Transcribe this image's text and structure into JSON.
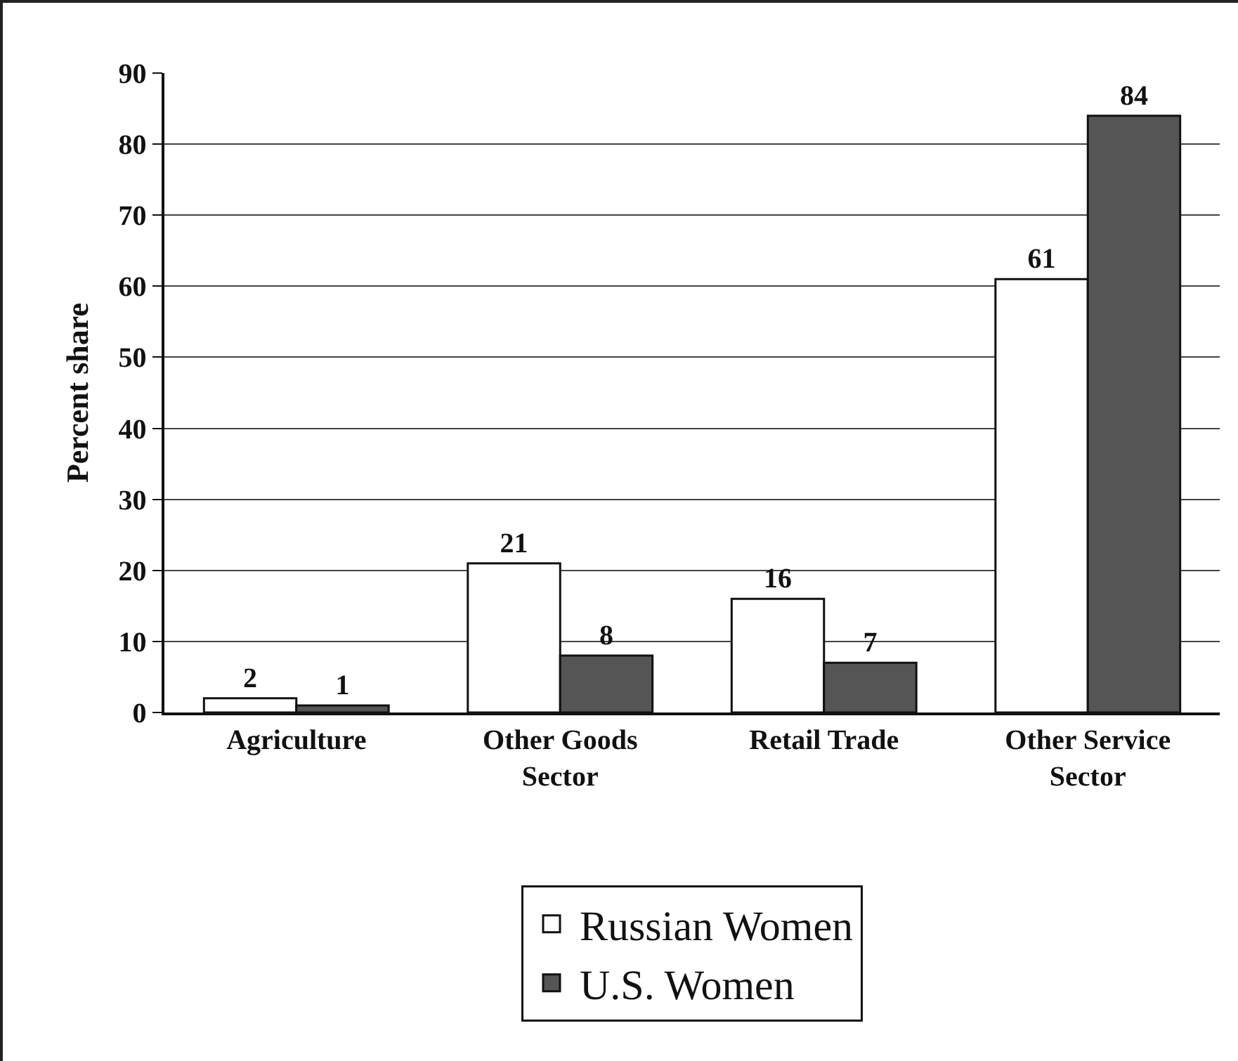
{
  "chart_data": {
    "type": "bar",
    "ylabel": "Percent share",
    "categories": [
      "Agriculture",
      "Other Goods Sector",
      "Retail Trade",
      "Other Service Sector"
    ],
    "series": [
      {
        "name": "Russian Women",
        "color": "#ffffff",
        "values": [
          2,
          21,
          16,
          61
        ]
      },
      {
        "name": "U.S. Women",
        "color": "#555555",
        "values": [
          1,
          8,
          7,
          84
        ]
      }
    ],
    "ylim": [
      0,
      90
    ],
    "yticks": [
      0,
      10,
      20,
      30,
      40,
      50,
      60,
      70,
      80,
      90
    ],
    "grid": "y",
    "legend": "bottom",
    "data_labels": true
  }
}
